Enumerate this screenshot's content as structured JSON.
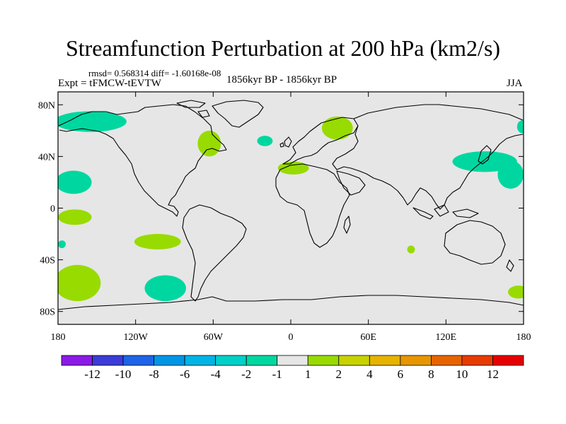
{
  "title": "Streamfunction Perturbation at 200 hPa (km2/s)",
  "stats": "rmsd= 0.568314 diff= -1.60168e-08",
  "experiment": "Expt = tFMCW-tEVTW",
  "period": "1856kyr BP - 1856kyr BP",
  "season": "JJA",
  "map": {
    "background": "#e6e6e6",
    "lat_ticks": [
      {
        "value": 80,
        "label": "80N"
      },
      {
        "value": 40,
        "label": "40N"
      },
      {
        "value": 0,
        "label": "0"
      },
      {
        "value": -40,
        "label": "40S"
      },
      {
        "value": -80,
        "label": "80S"
      }
    ],
    "lon_ticks": [
      {
        "value": -180,
        "label": "180"
      },
      {
        "value": -120,
        "label": "120W"
      },
      {
        "value": -60,
        "label": "60W"
      },
      {
        "value": 0,
        "label": "0"
      },
      {
        "value": 60,
        "label": "60E"
      },
      {
        "value": 120,
        "label": "120E"
      },
      {
        "value": 180,
        "label": "180"
      }
    ],
    "anomalies": [
      {
        "name": "n-pacific-arctic",
        "lon": -155,
        "lat": 67,
        "rlon": 28,
        "rlat": 8,
        "color": "#00d7a0"
      },
      {
        "name": "e-pacific-30n",
        "lon": -168,
        "lat": 20,
        "rlon": 14,
        "rlat": 9,
        "color": "#00d7a0"
      },
      {
        "name": "e-pacific-5s",
        "lon": -167,
        "lat": -7,
        "rlon": 13,
        "rlat": 6,
        "color": "#98db00"
      },
      {
        "name": "w-pacific-30s",
        "lon": -177,
        "lat": -28,
        "rlon": 3,
        "rlat": 3,
        "color": "#00d7a0"
      },
      {
        "name": "s-pacific-60s",
        "lon": -165,
        "lat": -58,
        "rlon": 18,
        "rlat": 14,
        "color": "#98db00"
      },
      {
        "name": "se-pacific-30s",
        "lon": -103,
        "lat": -26,
        "rlon": 18,
        "rlat": 6,
        "color": "#98db00"
      },
      {
        "name": "s-pacific-60s-blue",
        "lon": -97,
        "lat": -62,
        "rlon": 16,
        "rlat": 10,
        "color": "#00d7a0"
      },
      {
        "name": "ne-america",
        "lon": -63,
        "lat": 50,
        "rlon": 9,
        "rlat": 10,
        "color": "#98db00"
      },
      {
        "name": "n-atlantic",
        "lon": -20,
        "lat": 52,
        "rlon": 6,
        "rlat": 4,
        "color": "#00d7a0"
      },
      {
        "name": "scandinavia",
        "lon": 36,
        "lat": 62,
        "rlon": 12,
        "rlat": 9,
        "color": "#98db00"
      },
      {
        "name": "n-africa",
        "lon": 2,
        "lat": 31,
        "rlon": 12,
        "rlat": 5,
        "color": "#98db00"
      },
      {
        "name": "indian-ocean",
        "lon": 93,
        "lat": -32,
        "rlon": 3,
        "rlat": 3,
        "color": "#98db00"
      },
      {
        "name": "nw-pacific-jet",
        "lon": 150,
        "lat": 36,
        "rlon": 25,
        "rlat": 8,
        "color": "#00d7a0"
      },
      {
        "name": "nw-pacific-tail",
        "lon": 170,
        "lat": 26,
        "rlon": 10,
        "rlat": 11,
        "color": "#00d7a0"
      },
      {
        "name": "far-east-arctic",
        "lon": 179,
        "lat": 63,
        "rlon": 4,
        "rlat": 5,
        "color": "#00d7a0"
      },
      {
        "name": "sw-pacific-60s",
        "lon": 176,
        "lat": -65,
        "rlon": 8,
        "rlat": 5,
        "color": "#98db00"
      }
    ]
  },
  "colorbar": {
    "colors": [
      "#8b1ae6",
      "#3c3cd7",
      "#1e64e6",
      "#0096e6",
      "#00b4e6",
      "#00d0c8",
      "#00d7a0",
      "#e6e6e6",
      "#98db00",
      "#c8d200",
      "#e6b400",
      "#e69600",
      "#e66400",
      "#e63c00",
      "#e60000"
    ],
    "labels": [
      "-12",
      "-10",
      "-8",
      "-6",
      "-4",
      "-2",
      "-1",
      "1",
      "2",
      "4",
      "6",
      "8",
      "10",
      "12"
    ]
  }
}
